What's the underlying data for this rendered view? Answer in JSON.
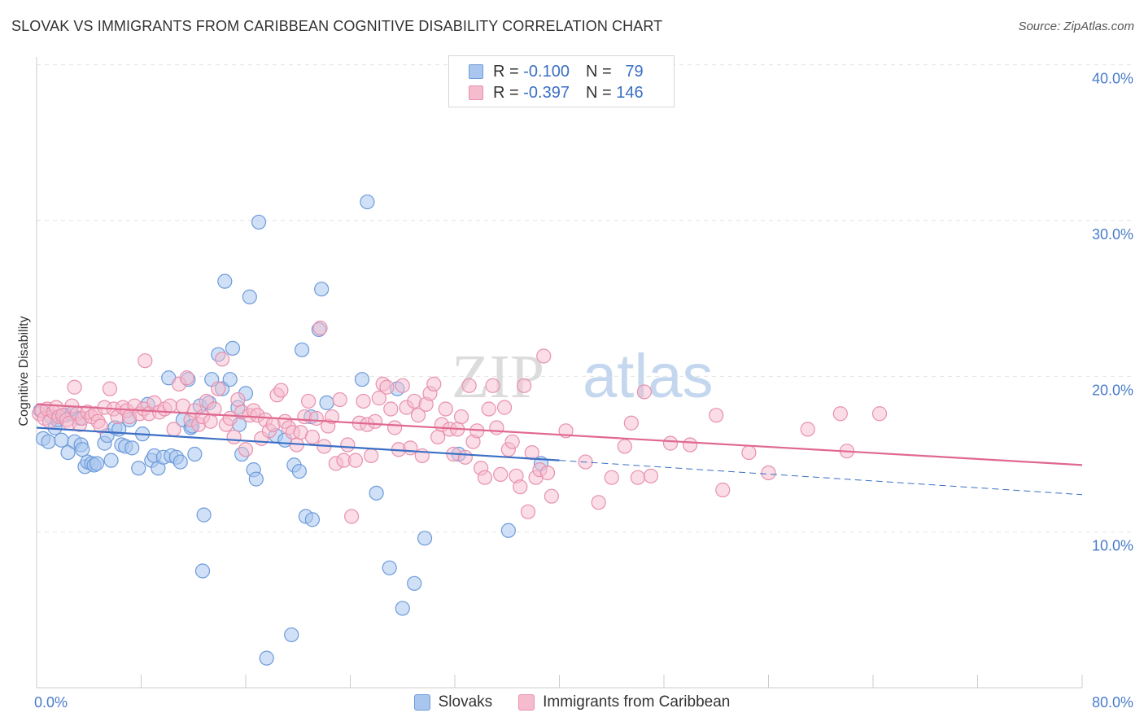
{
  "header": {
    "title": "SLOVAK VS IMMIGRANTS FROM CARIBBEAN COGNITIVE DISABILITY CORRELATION CHART",
    "source": "Source: ZipAtlas.com"
  },
  "watermark": {
    "part1": "ZIP",
    "part2": "atlas"
  },
  "stats": [
    {
      "r_label": "R =",
      "r_value": "-0.100",
      "n_label": "N =",
      "n_value": "79"
    },
    {
      "r_label": "R =",
      "r_value": "-0.397",
      "n_label": "N =",
      "n_value": "146"
    }
  ],
  "legend": {
    "items": [
      "Slovaks",
      "Immigrants from Caribbean"
    ]
  },
  "colors": {
    "slovaks_fill": "#a9c6ee",
    "slovaks_stroke": "#6d9bdb",
    "slovaks_line": "#3b6fc4",
    "carib_fill": "#f5bccd",
    "carib_stroke": "#e891ad",
    "carib_line": "#e0688f",
    "grid": "#e2e2e2",
    "axis_text": "#4a7cc9"
  },
  "chart_data": {
    "type": "scatter",
    "title": "SLOVAK VS IMMIGRANTS FROM CARIBBEAN COGNITIVE DISABILITY CORRELATION CHART",
    "xlabel": "",
    "ylabel": "Cognitive Disability",
    "xlim": [
      0,
      80
    ],
    "ylim": [
      0,
      42
    ],
    "x_tick_labels": [
      "0.0%",
      "80.0%"
    ],
    "y_ticks": [
      10,
      20,
      30,
      40
    ],
    "y_tick_labels": [
      "10.0%",
      "20.0%",
      "30.0%",
      "40.0%"
    ],
    "grid": true,
    "legend_position": "bottom",
    "series": [
      {
        "name": "Slovaks",
        "R": -0.1,
        "N": 79,
        "trend": {
          "x": [
            0,
            40
          ],
          "y": [
            16.7,
            14.6
          ]
        },
        "trend_dashed": {
          "x": [
            40,
            80
          ],
          "y": [
            14.6,
            12.4
          ]
        },
        "points": [
          [
            0.3,
            17.8
          ],
          [
            0.5,
            16
          ],
          [
            0.9,
            15.8
          ],
          [
            1.1,
            17.4
          ],
          [
            1.4,
            16.7
          ],
          [
            1.6,
            17.2
          ],
          [
            1.9,
            15.9
          ],
          [
            2.2,
            17.5
          ],
          [
            2.4,
            15.1
          ],
          [
            2.7,
            17.6
          ],
          [
            2.9,
            15.8
          ],
          [
            3.3,
            17.3
          ],
          [
            3.4,
            15.6
          ],
          [
            3.5,
            15.3
          ],
          [
            3.7,
            14.2
          ],
          [
            3.9,
            14.5
          ],
          [
            4.2,
            14.4
          ],
          [
            4.4,
            14.3
          ],
          [
            4.6,
            14.4
          ],
          [
            5.2,
            15.7
          ],
          [
            5.4,
            16.2
          ],
          [
            5.7,
            14.6
          ],
          [
            6,
            16.7
          ],
          [
            6.3,
            16.6
          ],
          [
            6.5,
            15.6
          ],
          [
            6.8,
            15.5
          ],
          [
            7.1,
            17.2
          ],
          [
            7.3,
            15.4
          ],
          [
            7.8,
            14.1
          ],
          [
            8.1,
            16.3
          ],
          [
            8.5,
            18.2
          ],
          [
            8.8,
            14.6
          ],
          [
            9,
            14.9
          ],
          [
            9.3,
            14.1
          ],
          [
            9.7,
            14.8
          ],
          [
            10.1,
            19.9
          ],
          [
            10.3,
            14.9
          ],
          [
            10.7,
            14.8
          ],
          [
            11,
            14.5
          ],
          [
            11.2,
            17.2
          ],
          [
            11.8,
            16.7
          ],
          [
            11.6,
            19.8
          ],
          [
            11.9,
            16.8
          ],
          [
            12.1,
            15
          ],
          [
            12.5,
            18.1
          ],
          [
            12.7,
            7.5
          ],
          [
            12.8,
            11.1
          ],
          [
            13.2,
            18.3
          ],
          [
            13.4,
            19.8
          ],
          [
            13.9,
            21.4
          ],
          [
            14.2,
            19.2
          ],
          [
            14.4,
            26.1
          ],
          [
            15,
            21.8
          ],
          [
            14.8,
            19.8
          ],
          [
            15.4,
            18
          ],
          [
            15.5,
            16.9
          ],
          [
            15.7,
            15
          ],
          [
            16,
            18.9
          ],
          [
            16.3,
            25.1
          ],
          [
            16.6,
            14
          ],
          [
            16.8,
            13.4
          ],
          [
            17,
            29.9
          ],
          [
            17.6,
            1.9
          ],
          [
            18.3,
            16.2
          ],
          [
            19,
            15.9
          ],
          [
            19.5,
            3.4
          ],
          [
            19.7,
            14.3
          ],
          [
            20.1,
            13.9
          ],
          [
            20.3,
            21.7
          ],
          [
            20.6,
            11
          ],
          [
            21.1,
            10.8
          ],
          [
            21,
            17.4
          ],
          [
            21.6,
            23
          ],
          [
            21.8,
            25.6
          ],
          [
            22.2,
            18.3
          ],
          [
            24.9,
            19.8
          ],
          [
            25.3,
            31.2
          ],
          [
            26,
            12.5
          ],
          [
            27,
            7.7
          ],
          [
            27.6,
            19.2
          ],
          [
            28,
            5.1
          ],
          [
            28.9,
            6.7
          ],
          [
            29.7,
            9.6
          ],
          [
            32.3,
            15
          ],
          [
            36.1,
            10.1
          ],
          [
            38.6,
            14.4
          ]
        ]
      },
      {
        "name": "Immigrants from Caribbean",
        "R": -0.397,
        "N": 146,
        "trend": {
          "x": [
            0,
            80
          ],
          "y": [
            18.2,
            14.3
          ]
        },
        "points": [
          [
            0.2,
            17.6
          ],
          [
            0.4,
            17.8
          ],
          [
            0.6,
            17.3
          ],
          [
            0.8,
            17.9
          ],
          [
            1,
            17.1
          ],
          [
            1.3,
            17.7
          ],
          [
            1.5,
            18
          ],
          [
            1.7,
            17.4
          ],
          [
            2,
            17.5
          ],
          [
            2.3,
            17.2
          ],
          [
            2.5,
            17
          ],
          [
            2.7,
            18.1
          ],
          [
            2.9,
            19.3
          ],
          [
            3.1,
            17.6
          ],
          [
            3.3,
            16.9
          ],
          [
            3.5,
            17.3
          ],
          [
            3.9,
            17.7
          ],
          [
            4.2,
            17.4
          ],
          [
            4.5,
            17.6
          ],
          [
            4.7,
            17.1
          ],
          [
            4.9,
            16.8
          ],
          [
            5.2,
            18
          ],
          [
            5.6,
            19.2
          ],
          [
            5.9,
            17.9
          ],
          [
            6.2,
            17.4
          ],
          [
            6.6,
            18
          ],
          [
            6.9,
            17.8
          ],
          [
            7.1,
            17.4
          ],
          [
            7.5,
            18.1
          ],
          [
            7.9,
            17.6
          ],
          [
            8.2,
            17.9
          ],
          [
            8.6,
            17.6
          ],
          [
            8.3,
            21
          ],
          [
            9,
            18.3
          ],
          [
            9.4,
            17.7
          ],
          [
            9.8,
            17.9
          ],
          [
            10.2,
            18.1
          ],
          [
            10.5,
            16.6
          ],
          [
            10.9,
            19.5
          ],
          [
            11.2,
            18.1
          ],
          [
            11.5,
            19.9
          ],
          [
            11.8,
            17.2
          ],
          [
            12.1,
            17.8
          ],
          [
            12.4,
            16.9
          ],
          [
            12.7,
            17.4
          ],
          [
            13,
            18.4
          ],
          [
            13.3,
            17.1
          ],
          [
            13.6,
            17.9
          ],
          [
            13.9,
            19.2
          ],
          [
            14.2,
            21.1
          ],
          [
            14.5,
            16.9
          ],
          [
            14.8,
            17.3
          ],
          [
            15.1,
            16.1
          ],
          [
            15.4,
            18.5
          ],
          [
            15.7,
            17.7
          ],
          [
            16,
            15.3
          ],
          [
            16.3,
            17.5
          ],
          [
            16.6,
            17.8
          ],
          [
            16.9,
            17.5
          ],
          [
            17.2,
            16
          ],
          [
            17.5,
            17.2
          ],
          [
            17.8,
            16.5
          ],
          [
            18.1,
            16.9
          ],
          [
            18.4,
            18.8
          ],
          [
            18.7,
            19.1
          ],
          [
            19,
            17.1
          ],
          [
            19.3,
            16.7
          ],
          [
            19.6,
            16.4
          ],
          [
            19.9,
            15.6
          ],
          [
            20.2,
            16.4
          ],
          [
            20.5,
            17.4
          ],
          [
            20.8,
            18.4
          ],
          [
            21.1,
            16.1
          ],
          [
            21.4,
            17.3
          ],
          [
            21.7,
            23.1
          ],
          [
            22,
            15.5
          ],
          [
            22.3,
            16.8
          ],
          [
            22.6,
            17.4
          ],
          [
            22.9,
            14.4
          ],
          [
            23.2,
            18.5
          ],
          [
            23.5,
            14.6
          ],
          [
            23.8,
            15.6
          ],
          [
            24.1,
            11
          ],
          [
            24.4,
            14.6
          ],
          [
            24.7,
            17
          ],
          [
            25,
            18.4
          ],
          [
            25.3,
            16.9
          ],
          [
            25.6,
            14.9
          ],
          [
            25.9,
            17.1
          ],
          [
            26.2,
            18.6
          ],
          [
            26.5,
            19.5
          ],
          [
            26.8,
            19.3
          ],
          [
            27.1,
            17.9
          ],
          [
            27.4,
            16.7
          ],
          [
            27.7,
            15.3
          ],
          [
            28,
            19.4
          ],
          [
            28.3,
            18
          ],
          [
            28.6,
            15.4
          ],
          [
            28.9,
            18.4
          ],
          [
            29.2,
            17.5
          ],
          [
            29.5,
            14.9
          ],
          [
            29.8,
            18.2
          ],
          [
            30.1,
            18.9
          ],
          [
            30.4,
            19.5
          ],
          [
            30.7,
            16.1
          ],
          [
            31,
            16.9
          ],
          [
            31.3,
            17.9
          ],
          [
            31.6,
            16.6
          ],
          [
            31.9,
            15
          ],
          [
            32.2,
            16.6
          ],
          [
            32.5,
            17.4
          ],
          [
            32.8,
            14.8
          ],
          [
            33.1,
            19.4
          ],
          [
            33.4,
            15.8
          ],
          [
            33.7,
            16.5
          ],
          [
            34,
            14.1
          ],
          [
            34.3,
            13.5
          ],
          [
            34.6,
            17.9
          ],
          [
            34.9,
            19.4
          ],
          [
            35.2,
            16.7
          ],
          [
            35.5,
            13.7
          ],
          [
            35.8,
            18
          ],
          [
            36.1,
            15.3
          ],
          [
            36.4,
            15.8
          ],
          [
            36.7,
            13.6
          ],
          [
            37,
            12.9
          ],
          [
            37.3,
            19.4
          ],
          [
            37.6,
            11.3
          ],
          [
            37.9,
            15.1
          ],
          [
            38.2,
            13.5
          ],
          [
            38.5,
            14
          ],
          [
            38.8,
            21.3
          ],
          [
            39.1,
            13.8
          ],
          [
            39.4,
            12.3
          ],
          [
            40.5,
            16.5
          ],
          [
            42,
            14.5
          ],
          [
            43,
            11.9
          ],
          [
            44,
            13.5
          ],
          [
            45,
            15.5
          ],
          [
            45.5,
            17
          ],
          [
            46,
            13.5
          ],
          [
            46.5,
            19
          ],
          [
            47,
            13.6
          ],
          [
            48.5,
            15.7
          ],
          [
            50,
            15.6
          ],
          [
            52,
            17.5
          ],
          [
            52.5,
            12.7
          ],
          [
            54.5,
            15.1
          ],
          [
            56,
            13.8
          ],
          [
            59,
            16.6
          ],
          [
            61.5,
            17.6
          ],
          [
            62,
            15.2
          ],
          [
            64.5,
            17.6
          ]
        ]
      }
    ]
  }
}
